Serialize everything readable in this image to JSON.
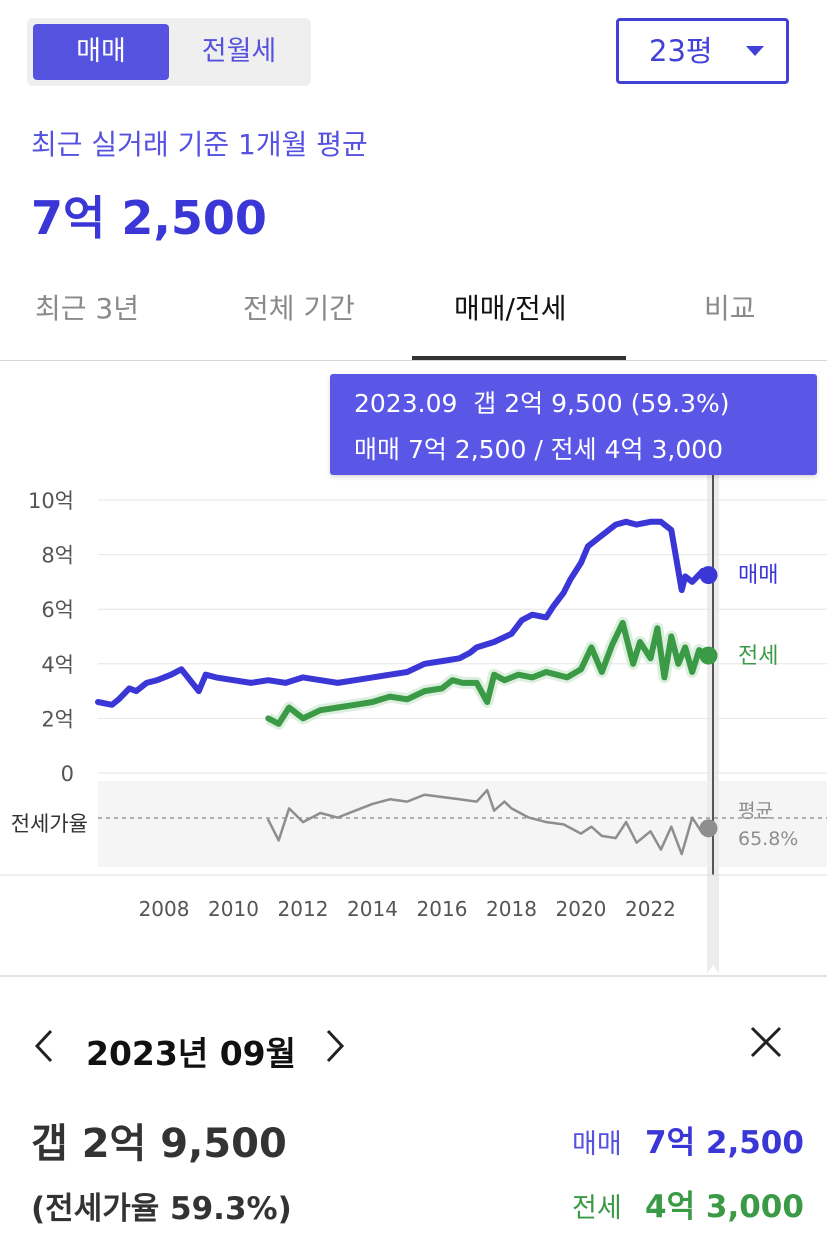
{
  "trade_toggle": {
    "sale": "매매",
    "jeonse_monthly": "전월세"
  },
  "size_select": {
    "value": "23평"
  },
  "subtitle": "최근 실거래 기준 1개월 평균",
  "avg_price": "7억 2,500",
  "tabs": [
    "최근 3년",
    "전체 기간",
    "매매/전세",
    "비교"
  ],
  "active_tab": 2,
  "tooltip": {
    "line1": "2023.09  갭 2억 9,500 (59.3%)",
    "line2": "매매 7억 2,500 / 전세 4억 3,000"
  },
  "series_labels": {
    "sale": "매매",
    "jeonse": "전세"
  },
  "ratio_label": "전세가율",
  "ratio_avg_label": "평균",
  "ratio_avg_value": "65.8%",
  "panel": {
    "date": "2023년 09월",
    "gap": "갭 2억 9,500",
    "ratio": "(전세가율 59.3%)",
    "sale_label": "매매",
    "sale_value": "7억 2,500",
    "jeonse_label": "전세",
    "jeonse_value": "4억 3,000"
  },
  "colors": {
    "accent": "#5552e0",
    "sale": "#3b36d6",
    "jeonse": "#3b9a45",
    "ratio": "#8e8e8e"
  },
  "chart_data": {
    "type": "line",
    "xlabel": "",
    "ylabel": "",
    "ylim": [
      0,
      10
    ],
    "y_unit": "억",
    "y_ticks": [
      "10억",
      "8억",
      "6억",
      "4억",
      "2억",
      "0"
    ],
    "y_tick_values": [
      10,
      8,
      6,
      4,
      2,
      0
    ],
    "x_ticks": [
      "2008",
      "2010",
      "2012",
      "2014",
      "2016",
      "2018",
      "2020",
      "2022"
    ],
    "x_tick_values": [
      2008,
      2010,
      2012,
      2014,
      2016,
      2018,
      2020,
      2022
    ],
    "xlim": [
      2006.1,
      2023.8
    ],
    "selected_x": 2023.67,
    "grid": true,
    "series": [
      {
        "name": "매매",
        "x": [
          2006.1,
          2006.5,
          2006.7,
          2007.0,
          2007.2,
          2007.5,
          2007.8,
          2008.2,
          2008.5,
          2009.0,
          2009.2,
          2009.5,
          2010.0,
          2010.5,
          2011.0,
          2011.5,
          2012.0,
          2012.5,
          2013.0,
          2013.5,
          2014.0,
          2014.5,
          2015.0,
          2015.5,
          2016.0,
          2016.5,
          2016.8,
          2017.0,
          2017.5,
          2018.0,
          2018.3,
          2018.6,
          2019.0,
          2019.2,
          2019.5,
          2019.7,
          2020.0,
          2020.2,
          2020.5,
          2020.8,
          2021.0,
          2021.3,
          2021.6,
          2022.0,
          2022.3,
          2022.6,
          2022.9,
          2023.0,
          2023.2,
          2023.5,
          2023.67
        ],
        "values": [
          2.6,
          2.5,
          2.7,
          3.1,
          3.0,
          3.3,
          3.4,
          3.6,
          3.8,
          3.0,
          3.6,
          3.5,
          3.4,
          3.3,
          3.4,
          3.3,
          3.5,
          3.4,
          3.3,
          3.4,
          3.5,
          3.6,
          3.7,
          4.0,
          4.1,
          4.2,
          4.4,
          4.6,
          4.8,
          5.1,
          5.6,
          5.8,
          5.7,
          6.1,
          6.6,
          7.1,
          7.7,
          8.3,
          8.6,
          8.9,
          9.1,
          9.2,
          9.1,
          9.2,
          9.2,
          8.9,
          6.7,
          7.2,
          7.0,
          7.4,
          7.25
        ]
      },
      {
        "name": "전세",
        "x": [
          2011.0,
          2011.3,
          2011.6,
          2012.0,
          2012.5,
          2013.0,
          2013.5,
          2014.0,
          2014.5,
          2015.0,
          2015.5,
          2016.0,
          2016.3,
          2016.6,
          2017.0,
          2017.3,
          2017.5,
          2017.8,
          2018.2,
          2018.6,
          2019.0,
          2019.3,
          2019.6,
          2020.0,
          2020.3,
          2020.6,
          2020.9,
          2021.2,
          2021.5,
          2021.7,
          2022.0,
          2022.2,
          2022.4,
          2022.6,
          2022.8,
          2023.0,
          2023.2,
          2023.4,
          2023.67
        ],
        "values": [
          2.0,
          1.8,
          2.4,
          2.0,
          2.3,
          2.4,
          2.5,
          2.6,
          2.8,
          2.7,
          3.0,
          3.1,
          3.4,
          3.3,
          3.3,
          2.6,
          3.6,
          3.4,
          3.6,
          3.5,
          3.7,
          3.6,
          3.5,
          3.8,
          4.6,
          3.7,
          4.7,
          5.5,
          4.0,
          4.8,
          4.2,
          5.3,
          3.5,
          5.0,
          4.0,
          4.6,
          3.7,
          4.5,
          4.3
        ]
      },
      {
        "name": "전세가율",
        "x": [
          2011.0,
          2011.3,
          2011.6,
          2012.0,
          2012.5,
          2013.0,
          2013.5,
          2014.0,
          2014.5,
          2015.0,
          2015.5,
          2016.0,
          2016.5,
          2017.0,
          2017.3,
          2017.5,
          2017.8,
          2018.0,
          2018.5,
          2019.0,
          2019.5,
          2020.0,
          2020.3,
          2020.6,
          2021.0,
          2021.3,
          2021.6,
          2022.0,
          2022.3,
          2022.6,
          2022.9,
          2023.2,
          2023.5,
          2023.67
        ],
        "values": [
          63,
          54,
          68,
          62,
          66,
          64,
          67,
          70,
          72,
          71,
          74,
          73,
          72,
          71,
          76,
          67,
          71,
          68,
          64,
          62,
          61,
          57,
          60,
          56,
          55,
          62,
          53,
          58,
          50,
          60,
          48,
          64,
          57,
          59.3
        ]
      }
    ],
    "ratio_average": 65.8
  }
}
